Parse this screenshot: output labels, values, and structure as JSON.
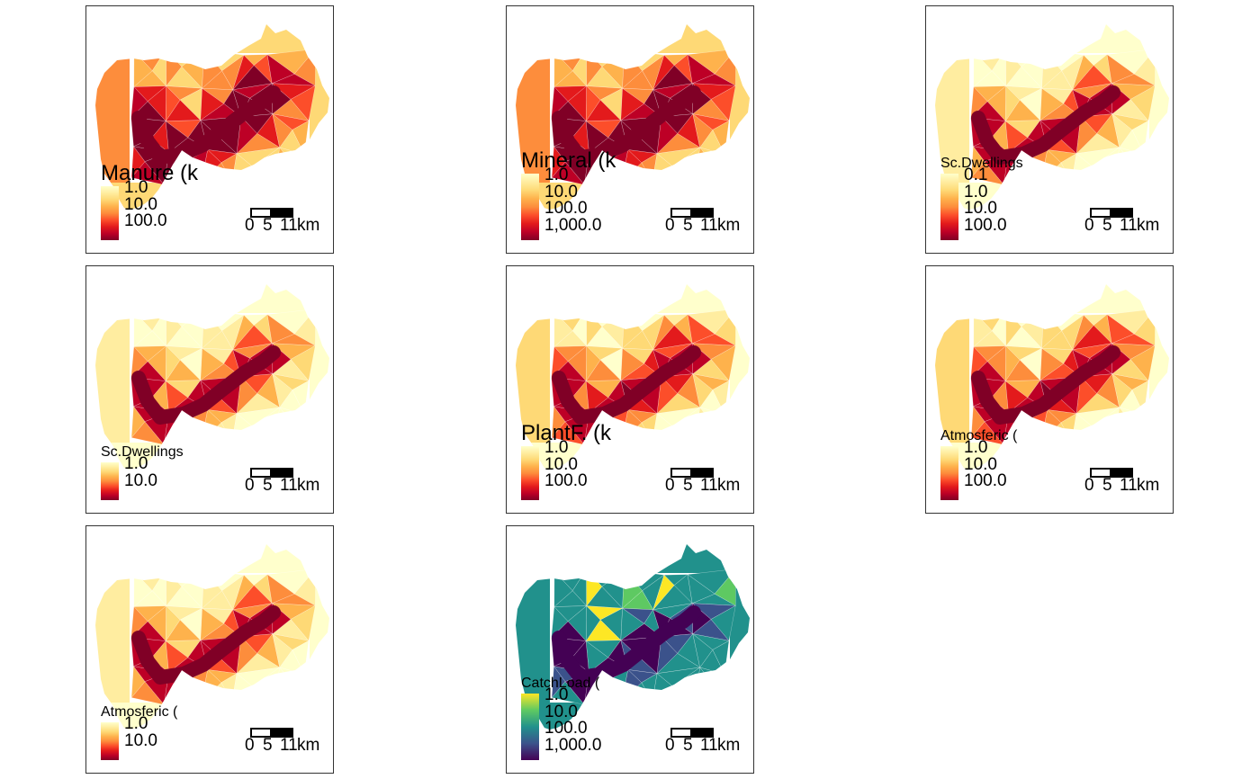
{
  "colors": {
    "ylorrd": [
      "#ffffcc",
      "#ffeda0",
      "#fed976",
      "#feb24c",
      "#fd8d3c",
      "#fc4e2a",
      "#e31a1c",
      "#bd0026",
      "#800026"
    ],
    "viridis": [
      "#440154",
      "#3b528b",
      "#21918c",
      "#5ec962",
      "#fde725"
    ]
  },
  "scale_bar": {
    "ticks": [
      "0",
      "5",
      "11"
    ],
    "unit": "km"
  },
  "panels": [
    {
      "id": "manure",
      "title": "Manure (k",
      "title_size": "large",
      "palette": "ylorrd",
      "legend_labels": [
        "1.0",
        "10.0",
        "100.0"
      ],
      "pattern": "high"
    },
    {
      "id": "mineral",
      "title": "Mineral (k",
      "title_size": "large",
      "palette": "ylorrd",
      "legend_labels": [
        "1.0",
        "10.0",
        "100.0",
        "1,000.0"
      ],
      "pattern": "high"
    },
    {
      "id": "scdwellings-1",
      "title": "Sc.Dwellings",
      "title_size": "small",
      "palette": "ylorrd",
      "legend_labels": [
        "0.1",
        "1.0",
        "10.0",
        "100.0"
      ],
      "pattern": "low"
    },
    {
      "id": "scdwellings-2",
      "title": "Sc.Dwellings",
      "title_size": "small",
      "palette": "ylorrd",
      "legend_labels": [
        "1.0",
        "10.0"
      ],
      "pattern": "low"
    },
    {
      "id": "plantf",
      "title": "PlantF. (k",
      "title_size": "large",
      "palette": "ylorrd",
      "legend_labels": [
        "1.0",
        "10.0",
        "100.0"
      ],
      "pattern": "mid"
    },
    {
      "id": "atmosferic-1",
      "title": "Atmosferic (",
      "title_size": "small",
      "palette": "ylorrd",
      "legend_labels": [
        "1.0",
        "10.0",
        "100.0"
      ],
      "pattern": "mid"
    },
    {
      "id": "atmosferic-2",
      "title": "Atmosferic (",
      "title_size": "small",
      "palette": "ylorrd",
      "legend_labels": [
        "1.0",
        "10.0"
      ],
      "pattern": "low"
    },
    {
      "id": "catchload",
      "title": "CatchLoad (",
      "title_size": "small",
      "palette": "viridis",
      "legend_labels": [
        "1.0",
        "10.0",
        "100.0",
        "1,000.0"
      ],
      "pattern": "viridis"
    }
  ]
}
